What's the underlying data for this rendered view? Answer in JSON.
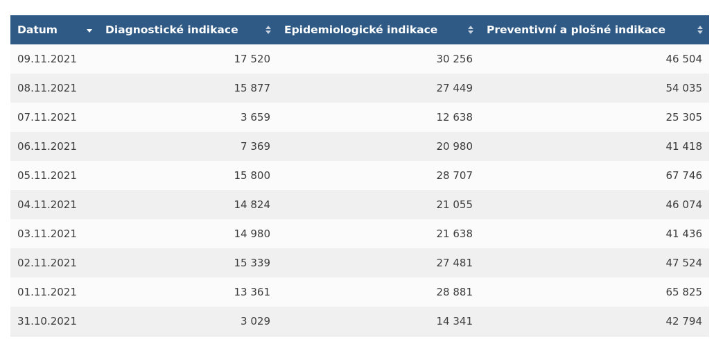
{
  "table": {
    "headers": [
      {
        "label": "Datum",
        "sort": "desc"
      },
      {
        "label": "Diagnostické indikace",
        "sort": "none"
      },
      {
        "label": "Epidemiologické indikace",
        "sort": "none"
      },
      {
        "label": "Preventivní a plošné indikace",
        "sort": "none"
      }
    ],
    "rows": [
      [
        "09.11.2021",
        "17 520",
        "30 256",
        "46 504"
      ],
      [
        "08.11.2021",
        "15 877",
        "27 449",
        "54 035"
      ],
      [
        "07.11.2021",
        "3 659",
        "12 638",
        "25 305"
      ],
      [
        "06.11.2021",
        "7 369",
        "20 980",
        "41 418"
      ],
      [
        "05.11.2021",
        "15 800",
        "28 707",
        "67 746"
      ],
      [
        "04.11.2021",
        "14 824",
        "21 055",
        "46 074"
      ],
      [
        "03.11.2021",
        "14 980",
        "21 638",
        "41 436"
      ],
      [
        "02.11.2021",
        "15 339",
        "27 481",
        "47 524"
      ],
      [
        "01.11.2021",
        "13 361",
        "28 881",
        "65 825"
      ],
      [
        "31.10.2021",
        "3 029",
        "14 341",
        "42 794"
      ]
    ]
  },
  "colors": {
    "header_bg": "#2f5a85",
    "header_text": "#ffffff",
    "row_odd": "#fbfbfb",
    "row_even": "#f0f0f0",
    "cell_text": "#3c3c3c"
  }
}
